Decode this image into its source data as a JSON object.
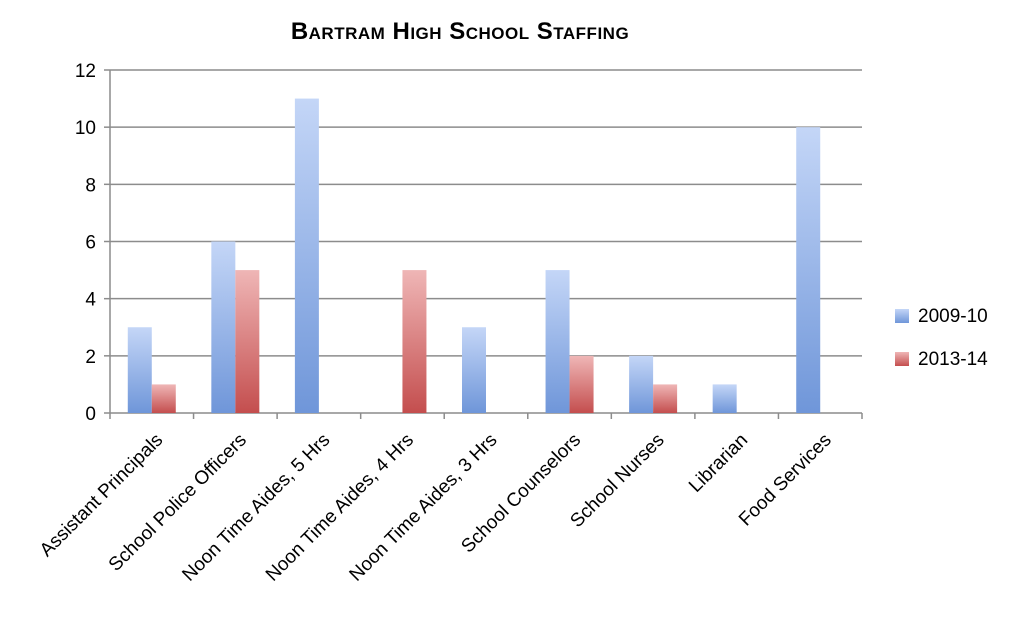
{
  "chart_data": {
    "type": "bar",
    "title": "Bartram High School Staffing",
    "categories": [
      "Assistant Principals",
      "School Police Officers",
      "Noon Time Aides, 5 Hrs",
      "Noon Time Aides, 4 Hrs",
      "Noon Time Aides, 3 Hrs",
      "School Counselors",
      "School Nurses",
      "Librarian",
      "Food Services"
    ],
    "series": [
      {
        "name": "2009-10",
        "values": [
          3,
          6,
          11,
          0,
          3,
          5,
          2,
          1,
          10
        ],
        "color": "#6f96d9"
      },
      {
        "name": "2013-14",
        "values": [
          1,
          5,
          0,
          5,
          0,
          2,
          1,
          0,
          0
        ],
        "color": "#c95b5b"
      }
    ],
    "xlabel": "",
    "ylabel": "",
    "ylim": [
      0,
      12
    ],
    "yticks": [
      0,
      2,
      4,
      6,
      8,
      10,
      12
    ],
    "grid": true,
    "legend": "right"
  }
}
